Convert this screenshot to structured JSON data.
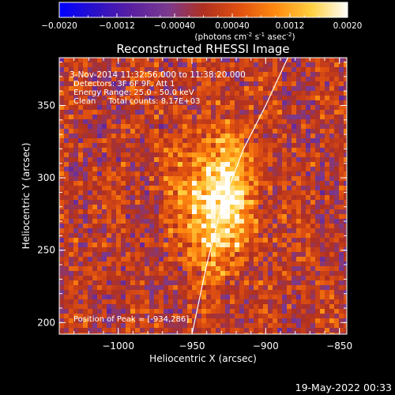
{
  "colorbar": {
    "ticks": [
      "-0.0020",
      "-0.0012",
      "-0.00040",
      "0.00040",
      "0.0012",
      "0.0020"
    ],
    "min": -0.002,
    "max": 0.002,
    "colormap": [
      "#0000ff",
      "#2a10c8",
      "#5a1fa0",
      "#7a3a90",
      "#b03020",
      "#e05010",
      "#ff8a10",
      "#ffd040",
      "#ffffff"
    ],
    "units_prefix": "(photons cm",
    "units_exp1": "-2",
    "units_mid": " s",
    "units_exp2": "-1",
    "units_mid2": " asec",
    "units_exp3": "-2",
    "units_suffix": ")"
  },
  "title": "Reconstructed RHESSI Image",
  "info": {
    "time": "3-Nov-2014 11:32:56.000 to 11:38:20.000",
    "detectors": "Detectors: 3F 6F 9F, Att 1",
    "energy": "Energy Range: 25.0 - 50.0 keV",
    "clean": "Clean     Total counts: 8.17E+03",
    "peak": "Position of Peak = [-934,286]"
  },
  "chart_data": {
    "type": "heatmap",
    "title": "Reconstructed RHESSI Image",
    "xlabel": "Heliocentric X (arcsec)",
    "ylabel": "Heliocentric Y (arcsec)",
    "xlim": [
      -1040,
      -845
    ],
    "ylim": [
      192,
      383
    ],
    "xticks": [
      -1000,
      -950,
      -900,
      -850
    ],
    "yticks": [
      200,
      250,
      300,
      350
    ],
    "xtick_labels": [
      "−1000",
      "−950",
      "−900",
      "−850"
    ],
    "ytick_labels": [
      "200",
      "250",
      "300",
      "350"
    ],
    "peak": {
      "x": -934,
      "y": 286
    },
    "limb": [
      [
        -950,
        192
      ],
      [
        -940,
        240
      ],
      [
        -930,
        280
      ],
      [
        -915,
        320
      ],
      [
        -900,
        350
      ],
      [
        -885,
        383
      ]
    ]
  },
  "footer": {
    "date": "19-May-2022 00:33"
  }
}
